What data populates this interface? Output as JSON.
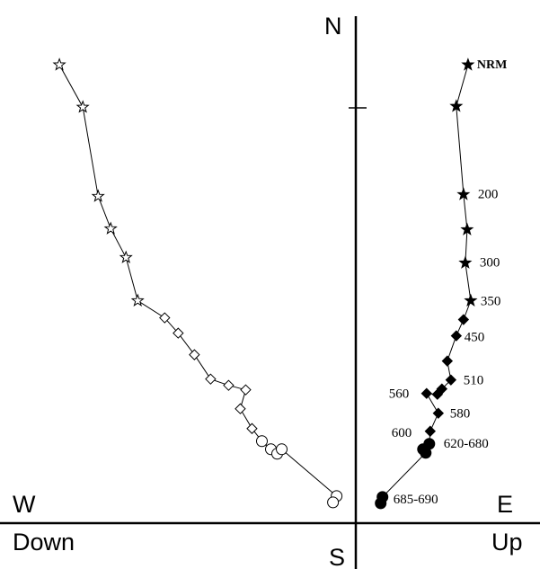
{
  "axes": {
    "north": "N",
    "south": "S",
    "west": "W",
    "east": "E",
    "down": "Down",
    "up": "Up"
  },
  "chart_data": {
    "type": "scatter",
    "projection": "orthogonal vector endpoint (Zijderveld) diagram",
    "series": [
      {
        "plane": "horizontal",
        "marker": "filled",
        "points": [
          {
            "x": 125,
            "y": 510,
            "symbol": "star",
            "label": "NRM"
          },
          {
            "x": 112,
            "y": 464,
            "symbol": "star",
            "label": ""
          },
          {
            "x": 120,
            "y": 366,
            "symbol": "star",
            "label": "200"
          },
          {
            "x": 124,
            "y": 327,
            "symbol": "star",
            "label": ""
          },
          {
            "x": 122,
            "y": 290,
            "symbol": "star",
            "label": "300"
          },
          {
            "x": 128,
            "y": 248,
            "symbol": "star",
            "label": "350"
          },
          {
            "x": 120,
            "y": 227,
            "symbol": "diamond",
            "label": ""
          },
          {
            "x": 112,
            "y": 209,
            "symbol": "diamond",
            "label": "450"
          },
          {
            "x": 102,
            "y": 181,
            "symbol": "diamond",
            "label": ""
          },
          {
            "x": 106,
            "y": 160,
            "symbol": "diamond",
            "label": "510"
          },
          {
            "x": 96,
            "y": 150,
            "symbol": "diamond",
            "label": ""
          },
          {
            "x": 91,
            "y": 144,
            "symbol": "diamond",
            "label": ""
          },
          {
            "x": 79,
            "y": 145,
            "symbol": "diamond",
            "label": "560"
          },
          {
            "x": 92,
            "y": 123,
            "symbol": "diamond",
            "label": "580"
          },
          {
            "x": 83,
            "y": 103,
            "symbol": "diamond",
            "label": "600"
          },
          {
            "x": 82,
            "y": 89,
            "symbol": "circle",
            "label": "620-680"
          },
          {
            "x": 75,
            "y": 83,
            "symbol": "circle",
            "label": ""
          },
          {
            "x": 78,
            "y": 79,
            "symbol": "circle",
            "label": ""
          },
          {
            "x": 30,
            "y": 30,
            "symbol": "circle",
            "label": "685-690"
          },
          {
            "x": 28,
            "y": 23,
            "symbol": "circle",
            "label": ""
          }
        ]
      },
      {
        "plane": "vertical",
        "marker": "open",
        "points": [
          {
            "x": -329,
            "y": 510,
            "symbol": "star"
          },
          {
            "x": -303,
            "y": 463,
            "symbol": "star"
          },
          {
            "x": -286,
            "y": 364,
            "symbol": "star"
          },
          {
            "x": -272,
            "y": 328,
            "symbol": "star"
          },
          {
            "x": -255,
            "y": 296,
            "symbol": "star"
          },
          {
            "x": -242,
            "y": 248,
            "symbol": "star"
          },
          {
            "x": -212,
            "y": 229,
            "symbol": "diamond"
          },
          {
            "x": -197,
            "y": 212,
            "symbol": "diamond"
          },
          {
            "x": -179,
            "y": 188,
            "symbol": "diamond"
          },
          {
            "x": -161,
            "y": 161,
            "symbol": "diamond"
          },
          {
            "x": -141,
            "y": 154,
            "symbol": "diamond"
          },
          {
            "x": -122,
            "y": 149,
            "symbol": "diamond"
          },
          {
            "x": -128,
            "y": 128,
            "symbol": "diamond"
          },
          {
            "x": -115,
            "y": 106,
            "symbol": "diamond"
          },
          {
            "x": -104,
            "y": 92,
            "symbol": "circle"
          },
          {
            "x": -94,
            "y": 83,
            "symbol": "circle"
          },
          {
            "x": -87,
            "y": 78,
            "symbol": "circle"
          },
          {
            "x": -82,
            "y": 83,
            "symbol": "circle"
          },
          {
            "x": -21,
            "y": 31,
            "symbol": "circle"
          },
          {
            "x": -25,
            "y": 24,
            "symbol": "circle"
          }
        ]
      }
    ],
    "xlim": [
      -395,
      205
    ],
    "ylim": [
      -50,
      582
    ],
    "grid": false,
    "legend": "none"
  }
}
